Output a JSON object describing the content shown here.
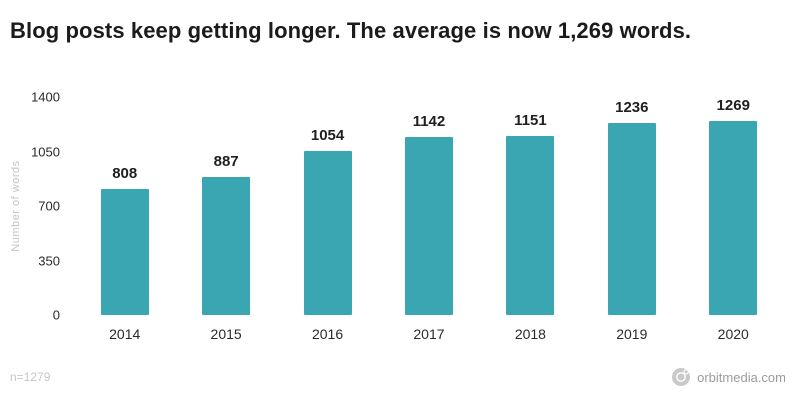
{
  "title": "Blog posts keep getting longer. The average is now 1,269 words.",
  "footer": {
    "sample_size": "n=1279",
    "brand": "orbitmedia.com"
  },
  "colors": {
    "accent": "#3aa6b1",
    "title_text": "#1b1b1b",
    "muted_text": "#c3c3c3"
  },
  "chart_data": {
    "type": "bar",
    "title": "Blog posts keep getting longer. The average is now 1,269 words.",
    "categories": [
      "2014",
      "2015",
      "2016",
      "2017",
      "2018",
      "2019",
      "2020"
    ],
    "values": [
      808,
      887,
      1054,
      1142,
      1151,
      1236,
      1269
    ],
    "xlabel": "",
    "ylabel": "Number of words",
    "ylim": [
      0,
      1400
    ],
    "yticks": [
      0,
      350,
      700,
      1050,
      1400
    ],
    "bar_color": "#3aa6b1",
    "grid": false,
    "legend": false,
    "value_labels": true
  }
}
